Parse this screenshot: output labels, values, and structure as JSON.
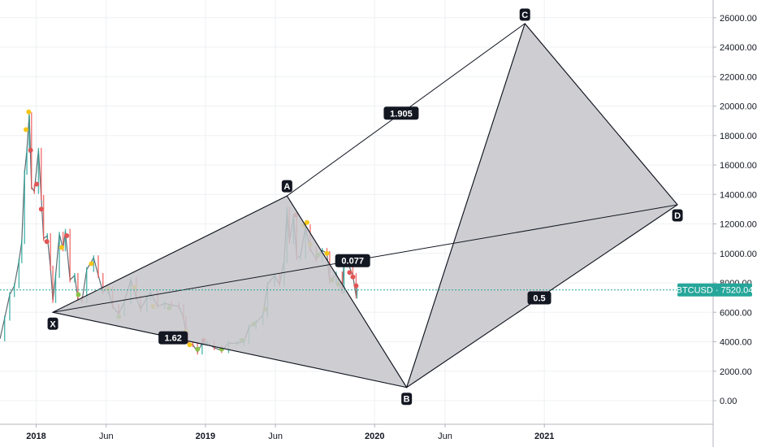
{
  "chart_data": {
    "type": "line",
    "symbol_label": "BTCUSD",
    "last_price_label": "7520.04",
    "last_price": 7520.04,
    "y_ticks": [
      "0.00",
      "2000.00",
      "4000.00",
      "6000.00",
      "8000.00",
      "10000.00",
      "12000.00",
      "14000.00",
      "16000.00",
      "18000.00",
      "20000.00",
      "22000.00",
      "24000.00",
      "26000.00"
    ],
    "y_tick_values": [
      0,
      2000,
      4000,
      6000,
      8000,
      10000,
      12000,
      14000,
      16000,
      18000,
      20000,
      22000,
      24000,
      26000
    ],
    "ylim": [
      -1600,
      27200
    ],
    "xlim": [
      "2017-10-15",
      "2021-12-31"
    ],
    "x_ticks": [
      {
        "label": "2018",
        "date": "2018-01-01",
        "bold": true
      },
      {
        "label": "Jun",
        "date": "2018-06-01",
        "bold": false
      },
      {
        "label": "2019",
        "date": "2019-01-01",
        "bold": true
      },
      {
        "label": "Jun",
        "date": "2019-06-01",
        "bold": false
      },
      {
        "label": "2020",
        "date": "2020-01-01",
        "bold": true
      },
      {
        "label": "Jun",
        "date": "2020-06-01",
        "bold": false
      },
      {
        "label": "2021",
        "date": "2021-01-01",
        "bold": true
      }
    ],
    "price_series": [
      [
        "2017-10-15",
        4200
      ],
      [
        "2017-10-25",
        5600
      ],
      [
        "2017-11-05",
        7200
      ],
      [
        "2017-11-15",
        7800
      ],
      [
        "2017-11-25",
        9500
      ],
      [
        "2017-12-01",
        10800
      ],
      [
        "2017-12-07",
        15500
      ],
      [
        "2017-12-12",
        17000
      ],
      [
        "2017-12-17",
        19400
      ],
      [
        "2017-12-22",
        14500
      ],
      [
        "2017-12-28",
        14200
      ],
      [
        "2018-01-06",
        17000
      ],
      [
        "2018-01-12",
        13800
      ],
      [
        "2018-01-17",
        11000
      ],
      [
        "2018-01-25",
        11200
      ],
      [
        "2018-02-01",
        9000
      ],
      [
        "2018-02-06",
        6800
      ],
      [
        "2018-02-12",
        8500
      ],
      [
        "2018-02-20",
        11300
      ],
      [
        "2018-02-28",
        10300
      ],
      [
        "2018-03-05",
        11500
      ],
      [
        "2018-03-15",
        8200
      ],
      [
        "2018-03-25",
        8500
      ],
      [
        "2018-04-01",
        6900
      ],
      [
        "2018-04-10",
        6800
      ],
      [
        "2018-04-20",
        8900
      ],
      [
        "2018-05-05",
        9700
      ],
      [
        "2018-05-15",
        8500
      ],
      [
        "2018-05-25",
        7400
      ],
      [
        "2018-06-05",
        7600
      ],
      [
        "2018-06-15",
        6400
      ],
      [
        "2018-06-28",
        5900
      ],
      [
        "2018-07-10",
        6700
      ],
      [
        "2018-07-24",
        8200
      ],
      [
        "2018-08-05",
        7000
      ],
      [
        "2018-08-14",
        6200
      ],
      [
        "2018-08-28",
        7000
      ],
      [
        "2018-09-05",
        7300
      ],
      [
        "2018-09-20",
        6400
      ],
      [
        "2018-10-05",
        6600
      ],
      [
        "2018-10-20",
        6500
      ],
      [
        "2018-11-05",
        6400
      ],
      [
        "2018-11-15",
        5600
      ],
      [
        "2018-11-20",
        4600
      ],
      [
        "2018-11-25",
        3900
      ],
      [
        "2018-12-05",
        3800
      ],
      [
        "2018-12-15",
        3300
      ],
      [
        "2018-12-25",
        3900
      ],
      [
        "2019-01-05",
        3900
      ],
      [
        "2019-01-20",
        3600
      ],
      [
        "2019-02-05",
        3400
      ],
      [
        "2019-02-20",
        3900
      ],
      [
        "2019-03-10",
        3900
      ],
      [
        "2019-03-25",
        4000
      ],
      [
        "2019-04-05",
        5000
      ],
      [
        "2019-04-20",
        5300
      ],
      [
        "2019-05-05",
        5800
      ],
      [
        "2019-05-15",
        7900
      ],
      [
        "2019-05-30",
        8500
      ],
      [
        "2019-06-10",
        7900
      ],
      [
        "2019-06-20",
        9500
      ],
      [
        "2019-06-26",
        13000
      ],
      [
        "2019-07-01",
        10800
      ],
      [
        "2019-07-10",
        12500
      ],
      [
        "2019-07-17",
        9700
      ],
      [
        "2019-07-25",
        9800
      ],
      [
        "2019-08-05",
        11800
      ],
      [
        "2019-08-15",
        10300
      ],
      [
        "2019-08-28",
        9600
      ],
      [
        "2019-09-10",
        10200
      ],
      [
        "2019-09-20",
        10000
      ],
      [
        "2019-09-26",
        8100
      ],
      [
        "2019-10-10",
        8600
      ],
      [
        "2019-10-23",
        7400
      ],
      [
        "2019-10-27",
        9500
      ],
      [
        "2019-11-05",
        9300
      ],
      [
        "2019-11-15",
        8500
      ],
      [
        "2019-11-22",
        7100
      ],
      [
        "2019-11-24",
        7520
      ]
    ],
    "signal_dots": [
      {
        "date": "2017-12-10",
        "value": 18400,
        "color": "#f5c518"
      },
      {
        "date": "2017-12-16",
        "value": 19600,
        "color": "#f5c518"
      },
      {
        "date": "2017-12-20",
        "value": 17000,
        "color": "#e05656"
      },
      {
        "date": "2018-01-02",
        "value": 14700,
        "color": "#e05656"
      },
      {
        "date": "2018-01-12",
        "value": 13000,
        "color": "#e05656"
      },
      {
        "date": "2018-01-24",
        "value": 10800,
        "color": "#e05656"
      },
      {
        "date": "2018-02-25",
        "value": 10400,
        "color": "#f5c518"
      },
      {
        "date": "2018-03-08",
        "value": 11200,
        "color": "#e05656"
      },
      {
        "date": "2018-04-02",
        "value": 7200,
        "color": "#8bc34a"
      },
      {
        "date": "2018-04-30",
        "value": 9300,
        "color": "#f5c518"
      },
      {
        "date": "2018-06-05",
        "value": 7600,
        "color": "#f5c518"
      },
      {
        "date": "2018-06-28",
        "value": 5700,
        "color": "#8bc34a"
      },
      {
        "date": "2018-08-01",
        "value": 7700,
        "color": "#f5c518"
      },
      {
        "date": "2018-09-10",
        "value": 6400,
        "color": "#f5c518"
      },
      {
        "date": "2018-10-15",
        "value": 6300,
        "color": "#8bc34a"
      },
      {
        "date": "2018-11-20",
        "value": 4700,
        "color": "#f5c518"
      },
      {
        "date": "2018-11-28",
        "value": 3800,
        "color": "#f5c518"
      },
      {
        "date": "2018-12-15",
        "value": 3500,
        "color": "#8bc34a"
      },
      {
        "date": "2018-12-28",
        "value": 4100,
        "color": "#e05656"
      },
      {
        "date": "2019-02-05",
        "value": 3500,
        "color": "#8bc34a"
      },
      {
        "date": "2019-03-20",
        "value": 4100,
        "color": "#8bc34a"
      },
      {
        "date": "2019-04-15",
        "value": 5200,
        "color": "#8bc34a"
      },
      {
        "date": "2019-05-10",
        "value": 6200,
        "color": "#8bc34a"
      },
      {
        "date": "2019-07-15",
        "value": 12600,
        "color": "#e05656"
      },
      {
        "date": "2019-08-01",
        "value": 11900,
        "color": "#f5c518"
      },
      {
        "date": "2019-08-08",
        "value": 12100,
        "color": "#f5c518"
      },
      {
        "date": "2019-08-15",
        "value": 10600,
        "color": "#f5c518"
      },
      {
        "date": "2019-09-01",
        "value": 9900,
        "color": "#8bc34a"
      },
      {
        "date": "2019-09-20",
        "value": 10000,
        "color": "#f5c518"
      },
      {
        "date": "2019-10-01",
        "value": 8200,
        "color": "#8bc34a"
      },
      {
        "date": "2019-10-15",
        "value": 7900,
        "color": "#8bc34a"
      },
      {
        "date": "2019-10-25",
        "value": 9700,
        "color": "#f5c518"
      },
      {
        "date": "2019-11-01",
        "value": 9300,
        "color": "#e05656"
      },
      {
        "date": "2019-11-08",
        "value": 8700,
        "color": "#e05656"
      },
      {
        "date": "2019-11-15",
        "value": 8400,
        "color": "#e05656"
      },
      {
        "date": "2019-11-22",
        "value": 7800,
        "color": "#e05656"
      }
    ],
    "harmonic_points": [
      {
        "label": "X",
        "date": "2018-02-06",
        "value": 6000
      },
      {
        "label": "A",
        "date": "2019-06-26",
        "value": 13900
      },
      {
        "label": "B",
        "date": "2020-03-10",
        "value": 900
      },
      {
        "label": "C",
        "date": "2020-11-20",
        "value": 25600
      },
      {
        "label": "D",
        "date": "2021-10-15",
        "value": 13300
      }
    ],
    "ratios": [
      {
        "label": "1.62",
        "from": "X",
        "to": "B",
        "at": 0.34
      },
      {
        "label": "1.905",
        "from": "A",
        "to": "C",
        "at": 0.48
      },
      {
        "label": "0.077",
        "from": "X",
        "to": "D",
        "at": 0.48
      },
      {
        "label": "0.5",
        "from": "B",
        "to": "D",
        "at": 0.49
      }
    ],
    "colors": {
      "up_candle": "#26a69a",
      "down_candle": "#ef5350",
      "pattern_fill": "#c5c6ca",
      "last_price": "#26a69a",
      "label_bg": "#131722"
    }
  }
}
